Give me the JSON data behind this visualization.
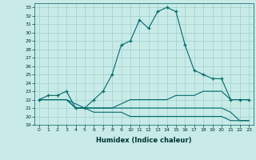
{
  "xlabel": "Humidex (Indice chaleur)",
  "ylabel": "",
  "bg_color": "#c8ebe8",
  "grid_color": "#9ecfcb",
  "line_color": "#006b6b",
  "xlim": [
    -0.5,
    23.5
  ],
  "ylim": [
    19,
    33.5
  ],
  "yticks": [
    19,
    20,
    21,
    22,
    23,
    24,
    25,
    26,
    27,
    28,
    29,
    30,
    31,
    32,
    33
  ],
  "xticks": [
    0,
    1,
    2,
    3,
    4,
    5,
    6,
    7,
    8,
    9,
    10,
    11,
    12,
    13,
    14,
    15,
    16,
    17,
    18,
    19,
    20,
    21,
    22,
    23
  ],
  "series": [
    {
      "x": [
        0,
        1,
        2,
        3,
        4,
        5,
        6,
        7,
        8,
        9,
        10,
        11,
        12,
        13,
        14,
        15,
        16,
        17,
        18,
        19,
        20,
        21,
        22,
        23
      ],
      "y": [
        22,
        22.5,
        22.5,
        23,
        21,
        21,
        22,
        23,
        25,
        28.5,
        29,
        31.5,
        30.5,
        32.5,
        33,
        32.5,
        28.5,
        25.5,
        25,
        24.5,
        24.5,
        22,
        22,
        22
      ],
      "marker": "+"
    },
    {
      "x": [
        0,
        1,
        2,
        3,
        4,
        5,
        6,
        7,
        8,
        9,
        10,
        11,
        12,
        13,
        14,
        15,
        16,
        17,
        18,
        19,
        20,
        21,
        22,
        23
      ],
      "y": [
        22,
        22,
        22,
        22,
        21.5,
        21,
        21,
        21,
        21,
        21.5,
        22,
        22,
        22,
        22,
        22,
        22.5,
        22.5,
        22.5,
        23,
        23,
        23,
        22,
        22,
        22
      ],
      "marker": null
    },
    {
      "x": [
        0,
        1,
        2,
        3,
        4,
        5,
        6,
        7,
        8,
        9,
        10,
        11,
        12,
        13,
        14,
        15,
        16,
        17,
        18,
        19,
        20,
        21,
        22,
        23
      ],
      "y": [
        22,
        22,
        22,
        22,
        21,
        21,
        20.5,
        20.5,
        20.5,
        20.5,
        20,
        20,
        20,
        20,
        20,
        20,
        20,
        20,
        20,
        20,
        20,
        19.5,
        19.5,
        19.5
      ],
      "marker": null
    },
    {
      "x": [
        0,
        1,
        2,
        3,
        4,
        5,
        6,
        7,
        8,
        9,
        10,
        11,
        12,
        13,
        14,
        15,
        16,
        17,
        18,
        19,
        20,
        21,
        22,
        23
      ],
      "y": [
        22,
        22,
        22,
        22,
        21,
        21,
        21,
        21,
        21,
        21,
        21,
        21,
        21,
        21,
        21,
        21,
        21,
        21,
        21,
        21,
        21,
        20.5,
        19.5,
        19.5
      ],
      "marker": null
    }
  ]
}
